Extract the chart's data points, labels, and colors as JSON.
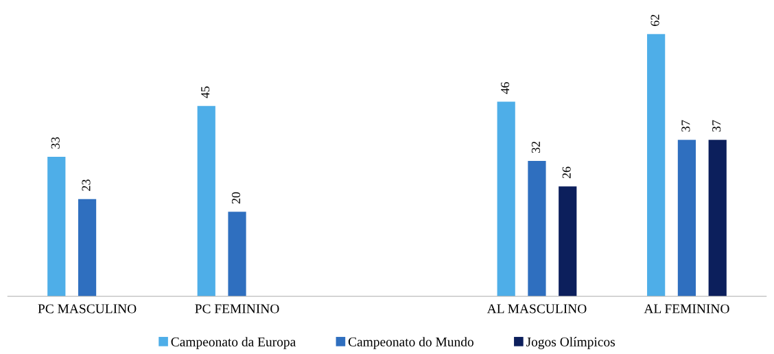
{
  "chart_data": {
    "type": "bar",
    "categories": [
      "PC MASCULINO",
      "PC FEMININO",
      null,
      "AL MASCULINO",
      "AL FEMININO"
    ],
    "series": [
      {
        "name": "Campeonato da Europa",
        "color": "#4eaee8",
        "values": [
          33,
          45,
          null,
          46,
          62
        ]
      },
      {
        "name": "Campeonato do Mundo",
        "color": "#2f6fbf",
        "values": [
          23,
          20,
          null,
          32,
          37
        ]
      },
      {
        "name": "Jogos Olímpicos",
        "color": "#0c1f5c",
        "values": [
          null,
          null,
          null,
          26,
          37
        ]
      }
    ],
    "data_labels": true,
    "legend": "bottom",
    "grid": false
  }
}
